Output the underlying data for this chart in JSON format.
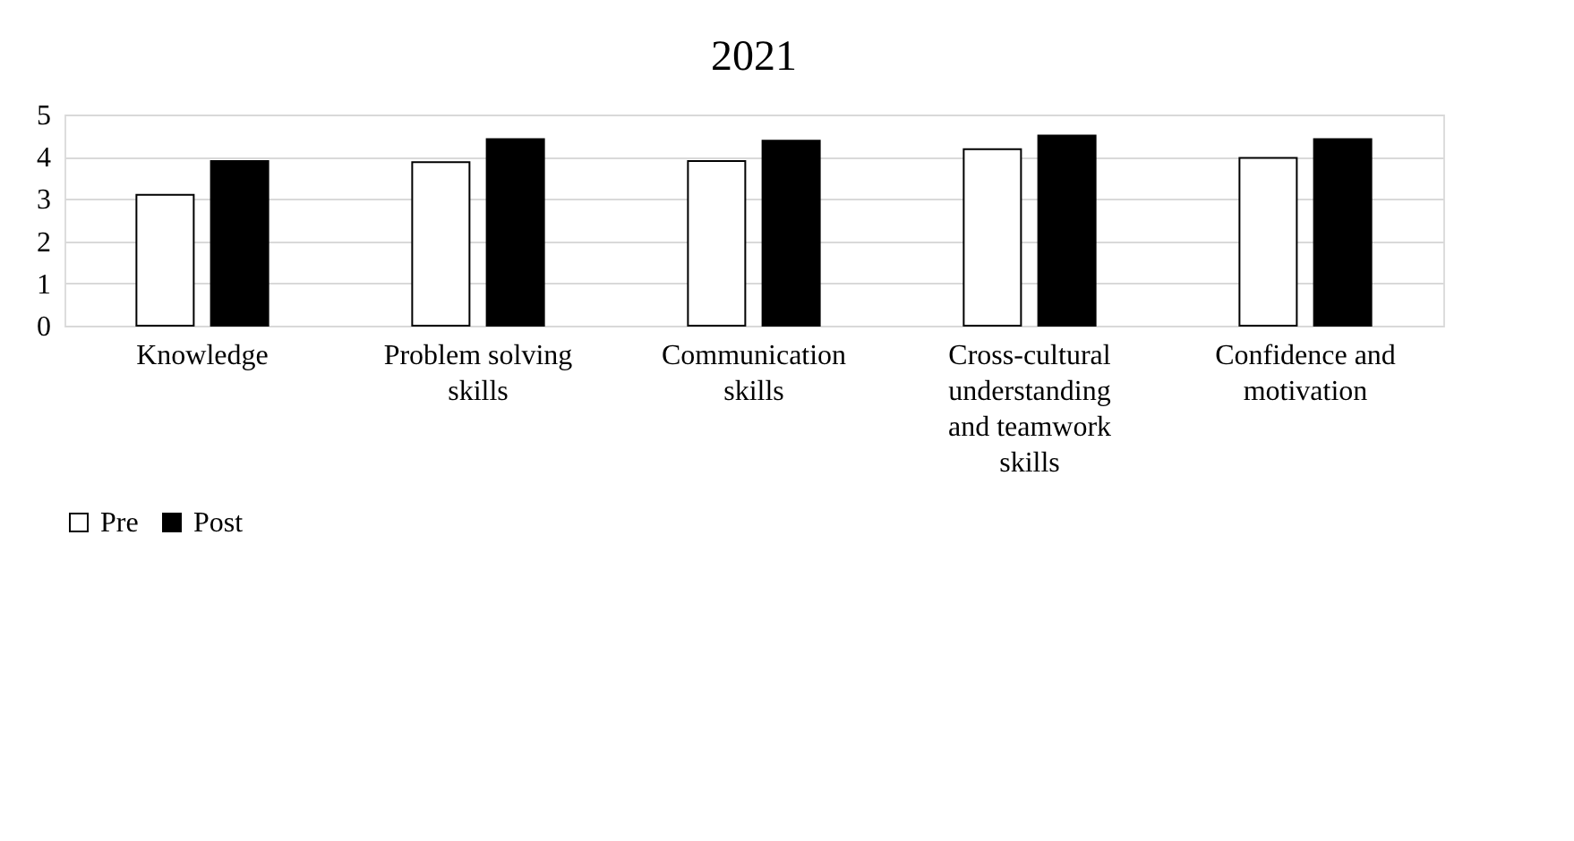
{
  "chart_data": {
    "type": "bar",
    "title": "2021",
    "categories": [
      "Knowledge",
      "Problem solving skills",
      "Communication skills",
      "Cross-cultural understanding and teamwork skills",
      "Confidence and motivation"
    ],
    "series": [
      {
        "name": "Pre",
        "color": "#ffffff",
        "values": [
          3.1,
          3.87,
          3.9,
          4.18,
          3.97
        ]
      },
      {
        "name": "Post",
        "color": "#000000",
        "values": [
          3.9,
          4.42,
          4.38,
          4.5,
          4.42
        ]
      }
    ],
    "ylim": [
      0,
      5
    ],
    "yticks": [
      0,
      1,
      2,
      3,
      4,
      5
    ],
    "grid": "y",
    "legend": "bottom"
  }
}
